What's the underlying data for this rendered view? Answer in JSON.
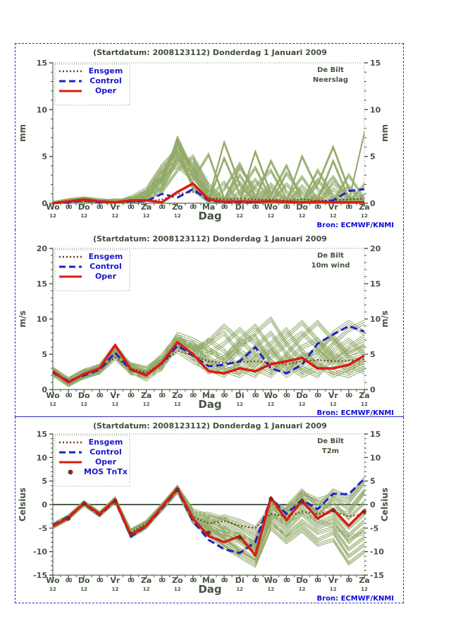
{
  "page": {
    "background": "#ffffff",
    "border_color": "#2a2ad0"
  },
  "branding": {
    "source_label": "Bron: ECMWF/KNMI",
    "source_color": "#0b0bd6"
  },
  "axis": {
    "x_day_labels": [
      "Wo",
      "Do",
      "Vr",
      "Za",
      "Zo",
      "Ma",
      "Di",
      "Wo",
      "Do",
      "Vr",
      "Za"
    ],
    "x_midnight_label": "00",
    "x_noon_label": "12",
    "x_title": "Dag"
  },
  "colors": {
    "text_dark": "#44543f",
    "title": "#3f4f3a",
    "legend_label_blue": "#1717cc",
    "oper_red": "#d81d12",
    "control_blue": "#2020cc",
    "ensgem_brown": "#6e3a20",
    "member_green": "#92aa6a",
    "frame_light": "#aab6a0",
    "axis_line": "#75836d",
    "zero_line": "#4d5b4a",
    "mos_dot": "#8a2f1f"
  },
  "chart_data": [
    {
      "type": "line",
      "title": "(Startdatum: 2008123112)   Donderdag  1 Januari   2009",
      "station": "De Bilt",
      "variable": "Neerslag",
      "ylabel": "mm",
      "ylim": [
        0,
        15
      ],
      "y_major_step": 5,
      "x_points": 21,
      "x_step_hours": 12,
      "legend": [
        "Ensgem",
        "Control",
        "Oper"
      ],
      "series": [
        {
          "name": "Ensgem",
          "values": [
            0,
            0.1,
            0.2,
            0.1,
            0.1,
            0.1,
            0.2,
            0.4,
            1.0,
            1.2,
            0.6,
            0.4,
            0.5,
            0.4,
            0.4,
            0.3,
            0.4,
            0.3,
            0.3,
            0.4,
            0.5
          ]
        },
        {
          "name": "Control",
          "values": [
            0,
            0.1,
            0.3,
            0.1,
            0.1,
            0.2,
            0.2,
            1.0,
            0.6,
            1.5,
            0.3,
            0.1,
            0.1,
            0.1,
            0.2,
            0.1,
            0.1,
            0.1,
            0.3,
            1.3,
            1.5
          ]
        },
        {
          "name": "Oper",
          "values": [
            0,
            0.2,
            0.4,
            0.2,
            0.1,
            0.3,
            0.3,
            0.1,
            1.2,
            2.1,
            0.4,
            0.15,
            0.2,
            0.15,
            0.2,
            0.15,
            0.1,
            0.15,
            0.1,
            0.1,
            0.1
          ]
        }
      ],
      "members": [
        [
          0,
          0.3,
          0.5,
          0.1,
          0,
          0.2,
          0.4,
          1.5,
          4.5,
          3.0,
          0.5,
          0,
          0.8,
          2.5,
          0.3,
          0,
          1.2,
          0.2,
          0,
          0.5,
          0.1
        ],
        [
          0,
          0.1,
          0.3,
          0,
          0.2,
          0,
          0.6,
          2.5,
          6.0,
          4.0,
          1.0,
          0.3,
          3.0,
          0.5,
          0,
          2.0,
          0.4,
          0,
          1.5,
          0.3,
          0
        ],
        [
          0,
          0.2,
          0.4,
          0.2,
          0,
          0.3,
          1.0,
          3.5,
          5.5,
          2.0,
          0.2,
          4.8,
          1.0,
          0,
          1.5,
          0.3,
          0,
          2.5,
          0.5,
          0,
          0.8
        ],
        [
          0,
          0.3,
          0.2,
          0,
          0.1,
          0.5,
          0.8,
          2.0,
          7.0,
          3.5,
          0.8,
          0.2,
          0,
          1.8,
          3.5,
          0.5,
          0,
          0.8,
          2.8,
          0.3,
          0
        ],
        [
          0,
          0.2,
          0.5,
          0.3,
          0,
          0.2,
          0.5,
          1.8,
          5.0,
          4.5,
          1.5,
          0,
          2.2,
          0.3,
          0,
          3.2,
          1.0,
          0,
          0.3,
          1.8,
          0.2
        ],
        [
          0,
          0.1,
          0.3,
          0.1,
          0.2,
          0.4,
          1.2,
          3.0,
          6.5,
          1.5,
          0,
          1.5,
          4.2,
          0.8,
          0,
          0.5,
          2.8,
          0.4,
          0,
          0.2,
          7.5
        ],
        [
          0,
          0.3,
          0.4,
          0.2,
          0.1,
          0.3,
          0.7,
          2.8,
          4.0,
          2.5,
          5.2,
          0.5,
          0,
          0.4,
          2.0,
          0.2,
          0,
          3.5,
          0.8,
          0,
          0.3
        ],
        [
          0,
          0.2,
          0.3,
          0.1,
          0,
          0.6,
          1.5,
          4.0,
          5.8,
          3.8,
          0.3,
          0,
          1.2,
          3.8,
          0.5,
          0,
          1.8,
          0.3,
          4.5,
          0.5,
          0
        ],
        [
          0,
          0.1,
          0.4,
          0.3,
          0.2,
          0.1,
          0.9,
          2.2,
          6.8,
          2.8,
          0.6,
          2.2,
          0,
          0.5,
          4.5,
          1.2,
          0,
          0.6,
          0.2,
          3.0,
          0.5
        ],
        [
          0,
          0.3,
          0.5,
          0.2,
          0.1,
          0.4,
          0.6,
          1.2,
          3.5,
          5.0,
          2.0,
          0.3,
          3.8,
          1.5,
          0.2,
          0,
          5.0,
          1.5,
          0.3,
          0,
          2.0
        ],
        [
          0,
          0.2,
          0.2,
          0.1,
          0.3,
          0.2,
          1.1,
          3.2,
          5.2,
          1.8,
          0.4,
          6.5,
          2.0,
          0,
          0.8,
          4.0,
          0.3,
          0,
          2.2,
          0.8,
          0.2
        ],
        [
          0,
          0.1,
          0.3,
          0.2,
          0,
          0.3,
          0.8,
          2.6,
          4.8,
          3.2,
          1.2,
          0.5,
          0.2,
          5.5,
          1.0,
          0.3,
          0,
          2.0,
          6.0,
          1.5,
          0.4
        ]
      ]
    },
    {
      "type": "line",
      "title": "(Startdatum: 2008123112)   Donderdag  1 Januari   2009",
      "station": "De Bilt",
      "variable": "10m wind",
      "ylabel": "m/s",
      "ylim": [
        0,
        20
      ],
      "y_major_step": 5,
      "x_points": 21,
      "x_step_hours": 12,
      "legend": [
        "Ensgem",
        "Control",
        "Oper"
      ],
      "series": [
        {
          "name": "Ensgem",
          "values": [
            2.5,
            1.2,
            2.1,
            2.9,
            4.5,
            3.0,
            2.4,
            3.7,
            5.5,
            4.8,
            4.0,
            3.8,
            3.9,
            4.0,
            3.8,
            3.6,
            4.0,
            4.2,
            4.0,
            4.1,
            4.3
          ]
        },
        {
          "name": "Control",
          "values": [
            2.4,
            1.2,
            2.0,
            2.8,
            5.2,
            2.8,
            2.1,
            3.7,
            6.2,
            4.8,
            3.3,
            3.5,
            4.0,
            6.0,
            3.0,
            2.3,
            3.5,
            6.5,
            7.8,
            9.0,
            8.2
          ]
        },
        {
          "name": "Oper",
          "values": [
            2.6,
            1.0,
            2.2,
            3.0,
            6.3,
            2.9,
            2.0,
            3.8,
            6.7,
            5.0,
            2.6,
            2.3,
            3.0,
            2.6,
            3.6,
            4.0,
            4.5,
            3.0,
            3.0,
            3.5,
            4.8
          ]
        }
      ],
      "members": [
        [
          2.8,
          1.2,
          2.3,
          3.1,
          5.8,
          3.2,
          2.2,
          4.0,
          6.5,
          5.2,
          4.5,
          3.0,
          2.5,
          4.5,
          5.5,
          3.0,
          4.5,
          5.5,
          3.5,
          4.5,
          5.0
        ],
        [
          2.4,
          0.8,
          2.0,
          2.7,
          5.0,
          2.6,
          1.8,
          3.5,
          7.2,
          6.0,
          5.5,
          4.5,
          6.5,
          7.5,
          4.0,
          2.5,
          5.0,
          3.5,
          2.0,
          3.0,
          4.0
        ],
        [
          2.6,
          1.1,
          2.4,
          3.2,
          6.0,
          3.0,
          2.5,
          4.2,
          5.5,
          4.0,
          3.0,
          2.0,
          4.0,
          6.0,
          8.0,
          5.0,
          3.0,
          2.0,
          4.5,
          6.0,
          7.5
        ],
        [
          2.3,
          1.0,
          1.8,
          2.5,
          4.5,
          2.5,
          2.0,
          3.0,
          6.8,
          5.5,
          6.5,
          8.0,
          5.0,
          3.0,
          2.0,
          4.0,
          6.0,
          7.0,
          5.0,
          3.5,
          2.5
        ],
        [
          2.7,
          1.3,
          2.5,
          3.0,
          5.5,
          3.5,
          3.0,
          4.5,
          7.0,
          6.5,
          4.0,
          2.5,
          3.5,
          5.0,
          6.5,
          8.5,
          5.5,
          3.5,
          2.5,
          2.0,
          3.0
        ],
        [
          2.5,
          0.9,
          2.1,
          2.8,
          5.2,
          2.7,
          1.5,
          3.2,
          6.0,
          5.0,
          7.0,
          5.5,
          3.0,
          2.0,
          4.5,
          6.5,
          8.0,
          6.0,
          4.0,
          5.5,
          6.5
        ],
        [
          2.9,
          1.4,
          2.6,
          3.3,
          6.2,
          3.3,
          2.7,
          4.8,
          7.5,
          5.8,
          3.5,
          4.5,
          7.0,
          9.0,
          6.0,
          3.5,
          2.0,
          3.0,
          5.5,
          7.0,
          5.0
        ],
        [
          2.2,
          0.7,
          1.9,
          2.6,
          4.8,
          2.4,
          2.2,
          3.8,
          6.3,
          4.5,
          2.5,
          3.5,
          5.5,
          4.0,
          2.5,
          5.0,
          7.5,
          9.5,
          7.0,
          4.5,
          3.5
        ],
        [
          2.6,
          1.2,
          2.2,
          3.0,
          5.6,
          3.1,
          2.4,
          4.1,
          6.9,
          6.2,
          5.0,
          6.5,
          8.5,
          6.5,
          4.0,
          2.0,
          3.5,
          5.0,
          8.0,
          9.5,
          8.0
        ],
        [
          2.4,
          1.0,
          2.0,
          2.9,
          5.4,
          2.9,
          2.1,
          3.6,
          6.6,
          5.3,
          4.2,
          2.8,
          2.0,
          3.5,
          5.5,
          7.5,
          9.5,
          7.0,
          4.5,
          2.5,
          4.5
        ],
        [
          2.8,
          1.1,
          2.3,
          3.1,
          5.9,
          3.4,
          2.8,
          4.4,
          7.8,
          7.0,
          5.8,
          4.0,
          6.0,
          8.0,
          10.0,
          6.5,
          4.0,
          6.0,
          7.5,
          5.0,
          6.0
        ],
        [
          2.5,
          1.0,
          2.2,
          2.9,
          5.3,
          2.8,
          2.3,
          3.9,
          6.4,
          5.6,
          6.8,
          9.0,
          7.0,
          5.0,
          3.0,
          4.5,
          2.5,
          4.0,
          6.5,
          8.5,
          9.5
        ]
      ]
    },
    {
      "type": "line",
      "title": "(Startdatum: 2008123112)   Donderdag  1 Januari   2009",
      "station": "De Bilt",
      "variable": "T2m",
      "ylabel": "Celsius",
      "ylim": [
        -15,
        15
      ],
      "y_major_step": 5,
      "x_points": 21,
      "x_step_hours": 12,
      "zero_line": true,
      "legend": [
        "Ensgem",
        "Control",
        "Oper",
        "MOS TnTx"
      ],
      "series": [
        {
          "name": "Ensgem",
          "values": [
            -4.5,
            -2.7,
            0.2,
            -2.0,
            0.8,
            -6.0,
            -4.0,
            -0.5,
            3.0,
            -2.5,
            -4.0,
            -3.5,
            -4.5,
            -5.0,
            -2.0,
            -2.5,
            -1.5,
            -2.0,
            -1.5,
            -2.5,
            -2.0
          ]
        },
        {
          "name": "Control",
          "values": [
            -4.4,
            -2.6,
            0.2,
            -2.2,
            0.8,
            -6.8,
            -4.6,
            -0.8,
            3.2,
            -3.5,
            -7.5,
            -9.5,
            -10.3,
            -8.0,
            1.3,
            -2.0,
            1.0,
            -1.0,
            2.3,
            2.2,
            5.5
          ]
        },
        {
          "name": "Oper",
          "values": [
            -4.6,
            -2.8,
            0.3,
            -2.0,
            1.0,
            -6.5,
            -4.5,
            -0.5,
            3.4,
            -3.0,
            -6.7,
            -8.0,
            -6.7,
            -10.8,
            1.5,
            -3.3,
            0.8,
            -3.0,
            -1.0,
            -4.5,
            -1.2
          ]
        }
      ],
      "mos_points": [
        [
          1,
          -3.0
        ],
        [
          2,
          0.2
        ],
        [
          4,
          0.8
        ],
        [
          5,
          -6.2
        ],
        [
          8,
          3.2
        ],
        [
          10,
          -6.0
        ],
        [
          12,
          -7.0
        ],
        [
          14,
          1.2
        ],
        [
          16,
          0.6
        ],
        [
          18,
          -1.2
        ],
        [
          20,
          -1.5
        ]
      ],
      "members": [
        [
          -4.3,
          -2.5,
          0.5,
          -1.8,
          1.3,
          -5.5,
          -3.8,
          -0.2,
          3.8,
          -1.5,
          -3.0,
          -5.0,
          -7.0,
          -9.0,
          0.5,
          -2.0,
          1.5,
          -1.5,
          0.5,
          -3.0,
          0.5
        ],
        [
          -4.8,
          -3.0,
          0.1,
          -2.3,
          0.7,
          -6.8,
          -4.8,
          -1.0,
          2.8,
          -3.5,
          -6.0,
          -8.5,
          -10.5,
          -7.5,
          -1.5,
          -4.5,
          -0.5,
          -4.0,
          -2.5,
          -6.5,
          -3.5
        ],
        [
          -4.5,
          -2.6,
          0.4,
          -1.9,
          1.1,
          -5.8,
          -4.0,
          -0.4,
          3.5,
          -2.0,
          -2.0,
          -3.0,
          -4.5,
          -6.0,
          -3.0,
          -1.0,
          2.0,
          0.5,
          -1.0,
          -2.0,
          2.5
        ],
        [
          -4.7,
          -2.9,
          0.0,
          -2.2,
          0.6,
          -6.5,
          -4.5,
          -0.8,
          3.0,
          -3.0,
          -5.0,
          -7.0,
          -9.5,
          -11.5,
          -2.5,
          -5.5,
          -2.0,
          -5.0,
          -3.5,
          -8.0,
          -5.0
        ],
        [
          -4.4,
          -2.7,
          0.3,
          -2.0,
          1.0,
          -6.0,
          -4.2,
          -0.5,
          3.3,
          -2.5,
          -4.0,
          -2.5,
          -3.5,
          -5.0,
          -0.5,
          -3.0,
          0.5,
          -2.5,
          1.5,
          -1.0,
          3.0
        ],
        [
          -4.6,
          -2.8,
          0.2,
          -2.1,
          0.9,
          -6.2,
          -4.4,
          -0.6,
          3.2,
          -2.8,
          -4.5,
          -6.5,
          -8.0,
          -10.0,
          -4.0,
          -6.5,
          -3.5,
          -6.0,
          -5.0,
          -9.5,
          -7.0
        ],
        [
          -4.5,
          -2.7,
          0.4,
          -1.9,
          1.2,
          -5.7,
          -3.9,
          -0.3,
          3.6,
          -1.8,
          -3.5,
          -4.5,
          -6.0,
          -8.5,
          1.0,
          -1.5,
          2.5,
          1.0,
          2.0,
          0.5,
          4.5
        ],
        [
          -4.7,
          -2.9,
          0.1,
          -2.2,
          0.8,
          -6.6,
          -4.7,
          -0.9,
          2.9,
          -3.2,
          -5.5,
          -7.5,
          -10.0,
          -12.0,
          -3.5,
          -7.0,
          -4.5,
          -7.5,
          -6.0,
          -11.0,
          -8.5
        ],
        [
          -4.4,
          -2.6,
          0.5,
          -1.8,
          1.3,
          -5.6,
          -3.7,
          -0.1,
          3.7,
          -1.2,
          -2.5,
          -3.5,
          -5.0,
          -7.0,
          -1.0,
          -0.5,
          3.0,
          -0.5,
          3.0,
          1.5,
          5.5
        ],
        [
          -4.6,
          -2.8,
          0.2,
          -2.1,
          0.9,
          -6.3,
          -4.3,
          -0.7,
          3.1,
          -2.9,
          -4.8,
          -6.0,
          -7.5,
          -9.5,
          -2.0,
          -4.0,
          -1.5,
          -3.5,
          -4.5,
          -7.0,
          -6.0
        ],
        [
          -4.5,
          -2.7,
          0.3,
          -2.0,
          1.1,
          -5.9,
          -4.1,
          -0.4,
          3.4,
          -2.2,
          -3.8,
          -5.5,
          -6.5,
          -8.0,
          0.0,
          -3.5,
          1.0,
          -2.0,
          -1.5,
          -5.0,
          -2.0
        ],
        [
          -4.7,
          -2.9,
          0.0,
          -2.3,
          0.7,
          -6.7,
          -4.6,
          -1.1,
          2.7,
          -3.8,
          -6.5,
          -9.0,
          -11.0,
          -13.0,
          -5.0,
          -8.0,
          -5.5,
          -8.5,
          -7.5,
          -12.5,
          -10.0
        ]
      ]
    }
  ]
}
